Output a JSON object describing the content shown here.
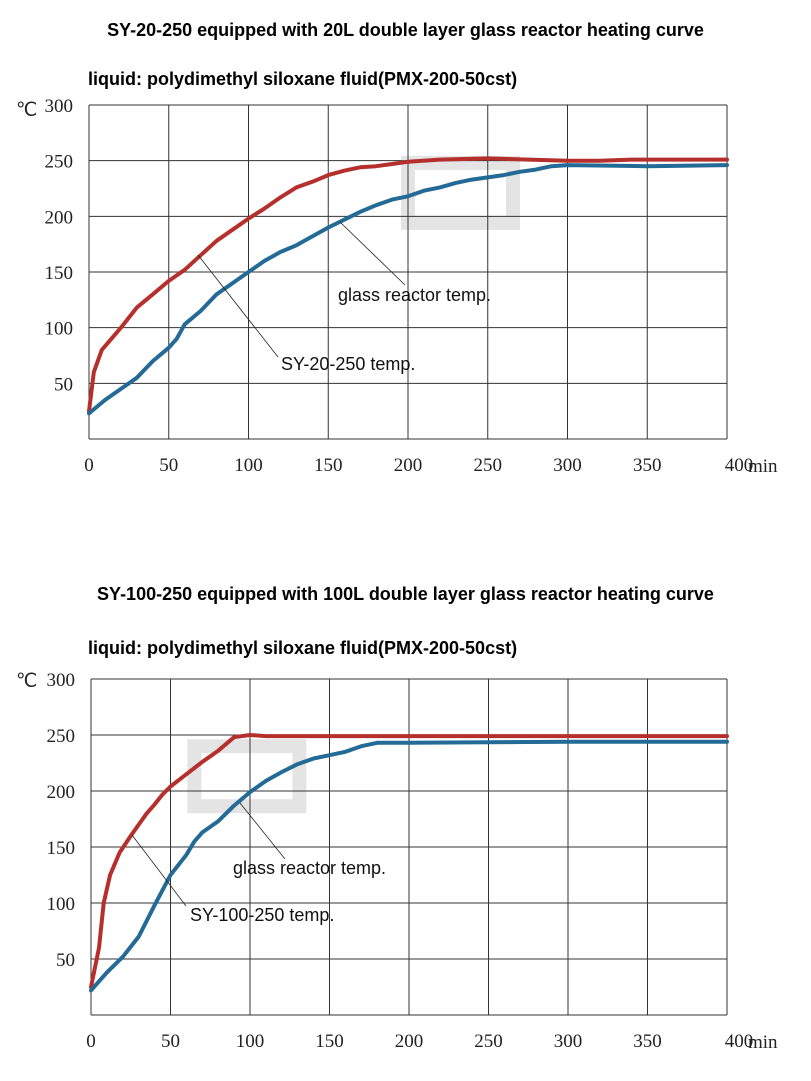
{
  "chart_data": [
    {
      "type": "line",
      "title": "SY-20-250 equipped with 20L double layer glass reactor heating curve",
      "subtitle": "liquid:  polydimethyl siloxane fluid(PMX-200-50cst)",
      "xlabel": "min",
      "ylabel": "℃",
      "xlim": [
        0,
        400
      ],
      "ylim": [
        0,
        300
      ],
      "xticks": [
        "0",
        "50",
        "100",
        "150",
        "200",
        "250",
        "300",
        "350",
        "400"
      ],
      "yticks": [
        "50",
        "100",
        "150",
        "200",
        "250",
        "300"
      ],
      "grid": true,
      "series": [
        {
          "name": "SY-20-250 temp.",
          "color": "#b5302c",
          "x": [
            0,
            3,
            8,
            20,
            30,
            40,
            50,
            60,
            70,
            80,
            90,
            100,
            110,
            120,
            130,
            140,
            150,
            160,
            170,
            180,
            190,
            200,
            220,
            250,
            300,
            320,
            340,
            400
          ],
          "y": [
            25,
            60,
            80,
            100,
            118,
            130,
            142,
            152,
            165,
            178,
            188,
            198,
            207,
            217,
            226,
            231,
            237,
            241,
            244,
            245,
            247,
            249,
            251,
            252,
            250,
            250,
            251,
            251
          ]
        },
        {
          "name": "glass reactor temp.",
          "color": "#236a96",
          "x": [
            0,
            10,
            20,
            30,
            40,
            50,
            55,
            60,
            70,
            80,
            90,
            100,
            110,
            120,
            130,
            140,
            150,
            160,
            170,
            180,
            190,
            200,
            210,
            220,
            230,
            240,
            250,
            260,
            270,
            280,
            290,
            300,
            350,
            400
          ],
          "y": [
            23,
            35,
            45,
            55,
            70,
            82,
            90,
            103,
            115,
            130,
            140,
            150,
            160,
            168,
            174,
            182,
            190,
            197,
            204,
            210,
            215,
            218,
            223,
            226,
            230,
            233,
            235,
            237,
            240,
            242,
            245,
            246,
            245,
            246
          ]
        }
      ],
      "annotations": [
        {
          "text": "glass reactor temp.",
          "target_series": 1
        },
        {
          "text": "SY-20-250 temp.",
          "target_series": 0
        }
      ]
    },
    {
      "type": "line",
      "title": "SY-100-250 equipped with 100L double layer glass reactor heating curve",
      "subtitle": "liquid:  polydimethyl siloxane fluid(PMX-200-50cst)",
      "xlabel": "min",
      "ylabel": "℃",
      "xlim": [
        0,
        400
      ],
      "ylim": [
        0,
        300
      ],
      "xticks": [
        "0",
        "50",
        "100",
        "150",
        "200",
        "250",
        "300",
        "350",
        "400"
      ],
      "yticks": [
        "50",
        "100",
        "150",
        "200",
        "250",
        "300"
      ],
      "grid": true,
      "series": [
        {
          "name": "SY-100-250 temp.",
          "color": "#b5302c",
          "x": [
            0,
            5,
            8,
            12,
            18,
            25,
            30,
            35,
            40,
            45,
            50,
            60,
            70,
            80,
            90,
            100,
            110,
            400
          ],
          "y": [
            25,
            60,
            100,
            125,
            145,
            160,
            170,
            180,
            188,
            197,
            204,
            215,
            226,
            236,
            248,
            250,
            249,
            249
          ]
        },
        {
          "name": "glass reactor temp.",
          "color": "#236a96",
          "x": [
            0,
            10,
            20,
            30,
            40,
            50,
            60,
            65,
            70,
            80,
            90,
            100,
            110,
            120,
            130,
            140,
            150,
            160,
            170,
            180,
            200,
            300,
            400
          ],
          "y": [
            22,
            38,
            52,
            70,
            98,
            125,
            143,
            155,
            163,
            173,
            187,
            199,
            209,
            217,
            224,
            229,
            232,
            235,
            240,
            243,
            243,
            244,
            244
          ]
        }
      ],
      "annotations": [
        {
          "text": "glass reactor temp.",
          "target_series": 1
        },
        {
          "text": "SY-100-250 temp.",
          "target_series": 0
        }
      ]
    }
  ]
}
